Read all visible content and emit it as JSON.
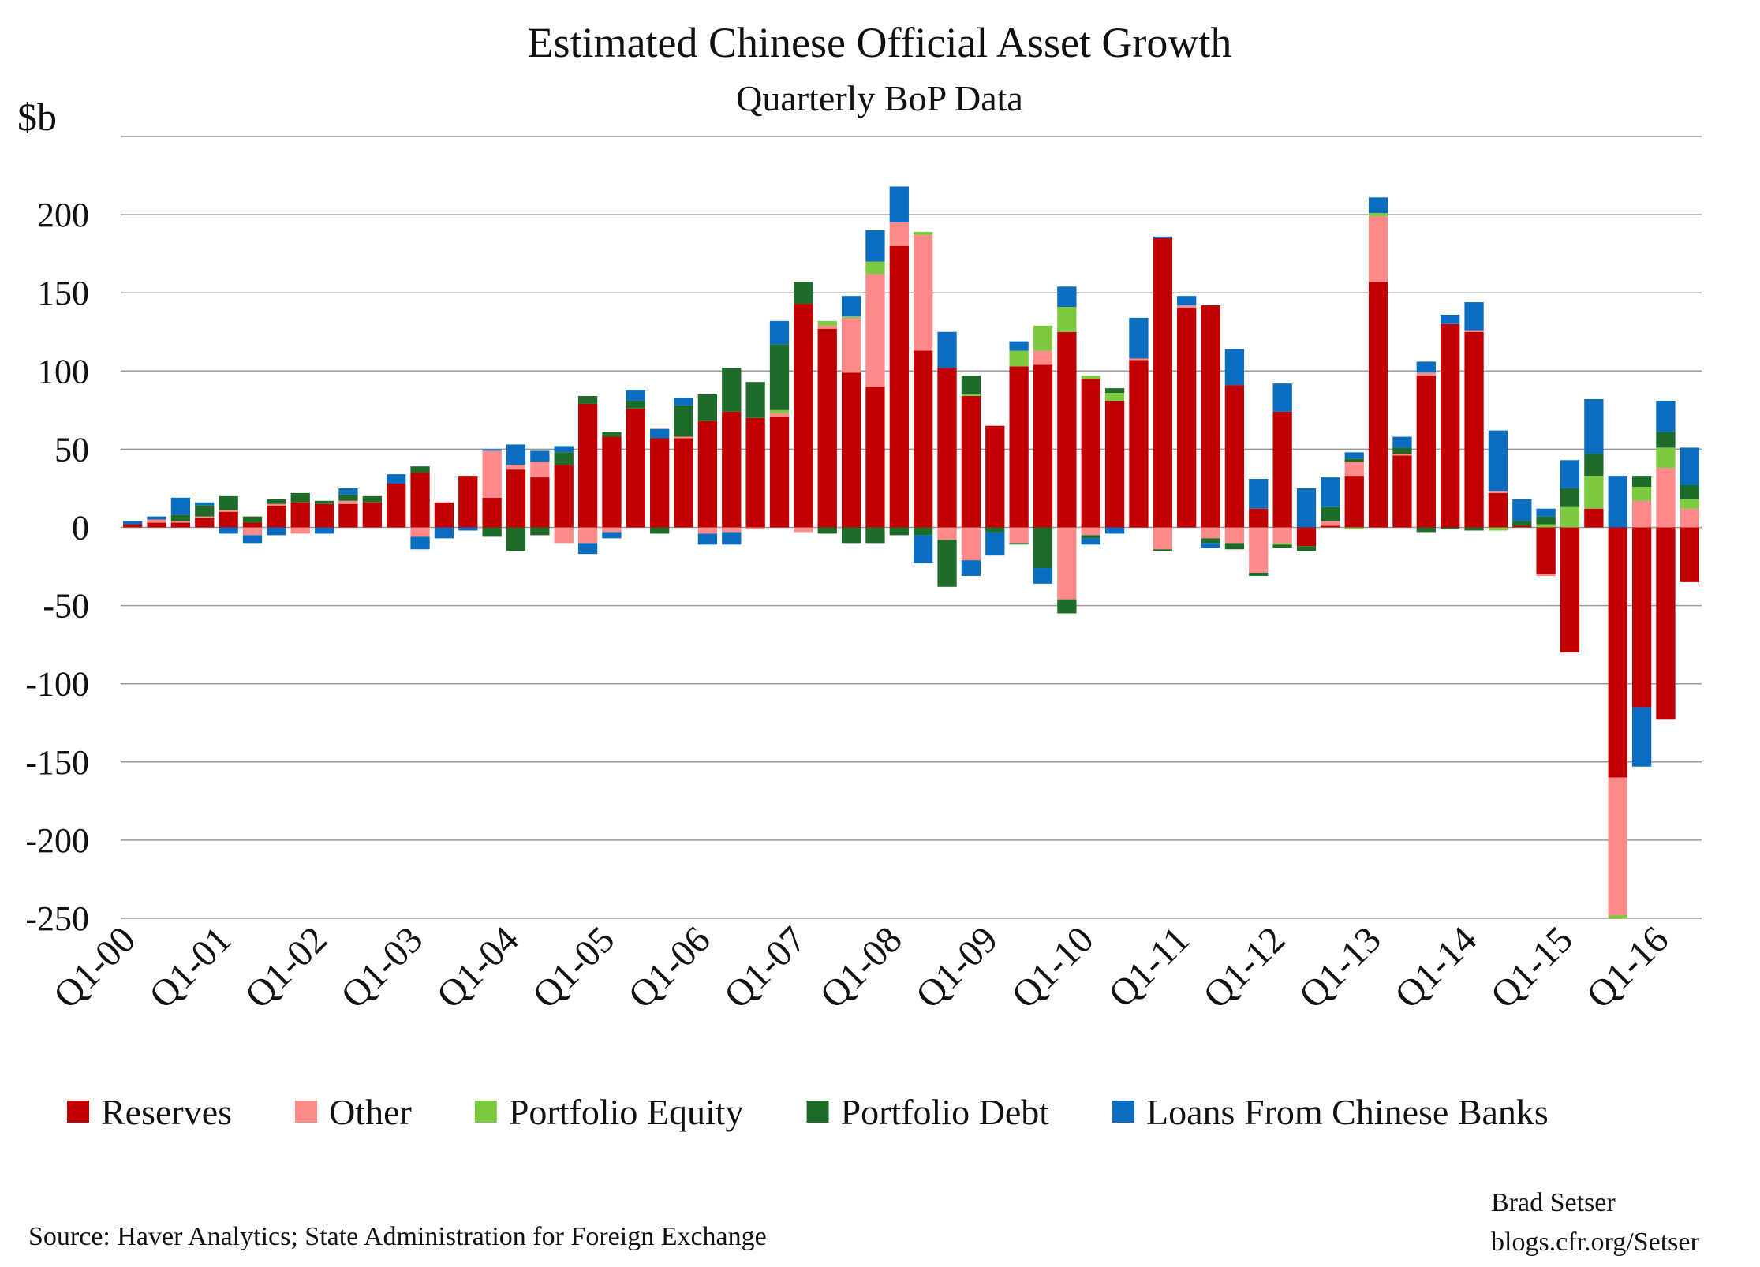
{
  "chart_data": {
    "type": "stacked_bar",
    "title": "Estimated Chinese Official Asset Growth",
    "subtitle": "Quarterly BoP Data",
    "y_label": "$b",
    "source": "Source: Haver Analytics; State Administration for Foreign Exchange",
    "credit": [
      "Brad Setser",
      "blogs.cfr.org/Setser"
    ],
    "categories": [
      "Q1-00",
      null,
      null,
      null,
      "Q1-01",
      null,
      null,
      null,
      "Q1-02",
      null,
      null,
      null,
      "Q1-03",
      null,
      null,
      null,
      "Q1-04",
      null,
      null,
      null,
      "Q1-05",
      null,
      null,
      null,
      "Q1-06",
      null,
      null,
      null,
      "Q1-07",
      null,
      null,
      null,
      "Q1-08",
      null,
      null,
      null,
      "Q1-09",
      null,
      null,
      null,
      "Q1-10",
      null,
      null,
      null,
      "Q1-11",
      null,
      null,
      null,
      "Q1-12",
      null,
      null,
      null,
      "Q1-13",
      null,
      null,
      null,
      "Q1-14",
      null,
      null,
      null,
      "Q1-15",
      null,
      null,
      null,
      "Q1-16",
      null
    ],
    "series": [
      {
        "name": "Reserves",
        "color": "#c00000",
        "values": [
          2,
          3,
          3,
          6,
          10,
          3,
          14,
          16,
          15,
          15,
          16,
          28,
          35,
          16,
          33,
          19,
          37,
          32,
          40,
          79,
          58,
          76,
          57,
          57,
          68,
          74,
          70,
          71,
          143,
          127,
          99,
          90,
          180,
          113,
          102,
          84,
          65,
          103,
          104,
          125,
          95,
          81,
          107,
          185,
          140,
          142,
          91,
          12,
          74,
          -12,
          1,
          33,
          157,
          46,
          97,
          130,
          125,
          22,
          1,
          -30,
          -80,
          12,
          -160,
          -115,
          -123,
          -35
        ]
      },
      {
        "name": "Other",
        "color": "#ff8a8a",
        "values": [
          0,
          2,
          1,
          1,
          1,
          -5,
          1,
          -4,
          0,
          2,
          0,
          0,
          -6,
          0,
          0,
          30,
          3,
          10,
          -10,
          -10,
          -3,
          0,
          0,
          1,
          -4,
          -3,
          -1,
          2,
          -3,
          2,
          35,
          72,
          15,
          74,
          -8,
          -21,
          0,
          -10,
          9,
          -46,
          -5,
          0,
          1,
          -14,
          2,
          -7,
          -10,
          -29,
          -10,
          0,
          3,
          9,
          42,
          1,
          2,
          0,
          1,
          1,
          0,
          -1,
          0,
          0,
          -88,
          17,
          38,
          12
        ]
      },
      {
        "name": "Portfolio Equity",
        "color": "#7dc940",
        "values": [
          0,
          0,
          0,
          0,
          0,
          0,
          0,
          0,
          0,
          0,
          0,
          0,
          0,
          0,
          0,
          0,
          0,
          0,
          0,
          0,
          0,
          0,
          0,
          0,
          0,
          0,
          0,
          2,
          0,
          3,
          1,
          8,
          0,
          2,
          0,
          1,
          0,
          10,
          16,
          16,
          2,
          5,
          0,
          0,
          0,
          0,
          0,
          0,
          -1,
          0,
          0,
          -1,
          2,
          0,
          0,
          0,
          0,
          -2,
          0,
          2,
          13,
          21,
          -2,
          9,
          13,
          6
        ]
      },
      {
        "name": "Portfolio Debt",
        "color": "#1f6b2a",
        "values": [
          0,
          0,
          4,
          7,
          9,
          4,
          3,
          6,
          2,
          4,
          4,
          0,
          4,
          0,
          0,
          -6,
          -15,
          -5,
          8,
          5,
          3,
          5,
          -4,
          20,
          17,
          28,
          23,
          42,
          14,
          -4,
          -10,
          -10,
          -5,
          -5,
          -30,
          12,
          -3,
          -1,
          -26,
          -9,
          -2,
          3,
          0,
          -1,
          0,
          -3,
          -4,
          -2,
          -2,
          -3,
          9,
          2,
          0,
          4,
          -3,
          -1,
          -2,
          0,
          3,
          5,
          12,
          14,
          0,
          7,
          10,
          9
        ]
      },
      {
        "name": "Loans From Chinese Banks",
        "color": "#0b6dbf",
        "values": [
          2,
          2,
          11,
          2,
          -4,
          -5,
          -5,
          0,
          -4,
          4,
          0,
          6,
          -8,
          -7,
          -2,
          1,
          13,
          7,
          4,
          -7,
          -4,
          7,
          6,
          5,
          -7,
          -8,
          0,
          15,
          0,
          0,
          13,
          20,
          23,
          -18,
          23,
          -10,
          -15,
          6,
          -10,
          13,
          -4,
          -4,
          26,
          1,
          6,
          -3,
          23,
          19,
          18,
          25,
          19,
          4,
          10,
          7,
          7,
          6,
          18,
          39,
          14,
          5,
          18,
          35,
          33,
          -38,
          20,
          24
        ]
      }
    ],
    "ylim": [
      -250,
      250
    ],
    "yticks": [
      -250,
      -200,
      -150,
      -100,
      -50,
      0,
      50,
      100,
      150,
      200
    ],
    "grid": true,
    "legend": "bottom"
  }
}
